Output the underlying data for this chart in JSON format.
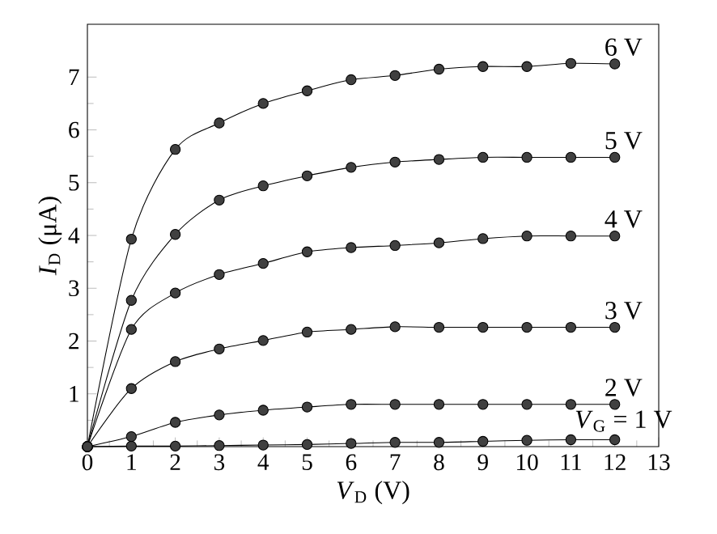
{
  "chart_data": {
    "type": "line",
    "xlabel": "*V*$_{D}$ (V)",
    "ylabel": "*I*$_{D}$ (μA)",
    "x": [
      0,
      1,
      2,
      3,
      4,
      5,
      6,
      7,
      8,
      9,
      10,
      11,
      12
    ],
    "xlim": [
      0,
      13
    ],
    "xticks": [
      0,
      1,
      2,
      3,
      4,
      5,
      6,
      7,
      8,
      9,
      10,
      11,
      12,
      13
    ],
    "ylim": [
      0,
      8
    ],
    "yticks": [
      {
        "value": 0,
        "label": null
      },
      1,
      2,
      3,
      4,
      5,
      6,
      7
    ],
    "marker": "circle",
    "line_style": "solid",
    "grid": false,
    "legend": false,
    "series": [
      {
        "name": "*V*$_{G}$ = 1 V",
        "color": "#000000",
        "values": [
          0,
          0.01,
          0.01,
          0.02,
          0.03,
          0.04,
          0.06,
          0.08,
          0.08,
          0.1,
          0.12,
          0.13,
          0.13
        ]
      },
      {
        "name": "2 V",
        "color": "#000000",
        "values": [
          0,
          0.19,
          0.46,
          0.6,
          0.69,
          0.75,
          0.8,
          0.8,
          0.8,
          0.8,
          0.8,
          0.8,
          0.8
        ]
      },
      {
        "name": "3 V",
        "color": "#000000",
        "values": [
          0,
          1.1,
          1.61,
          1.85,
          2.01,
          2.17,
          2.22,
          2.27,
          2.26,
          2.26,
          2.26,
          2.26,
          2.26
        ]
      },
      {
        "name": "4 V",
        "color": "#000000",
        "values": [
          0,
          2.22,
          2.91,
          3.26,
          3.47,
          3.69,
          3.77,
          3.81,
          3.86,
          3.94,
          3.99,
          3.99,
          3.99
        ]
      },
      {
        "name": "5 V",
        "color": "#000000",
        "values": [
          0,
          2.77,
          4.02,
          4.67,
          4.94,
          5.13,
          5.29,
          5.39,
          5.44,
          5.48,
          5.48,
          5.48,
          5.48
        ]
      },
      {
        "name": "6 V",
        "color": "#000000",
        "values": [
          0,
          3.93,
          5.63,
          6.13,
          6.5,
          6.74,
          6.95,
          7.03,
          7.15,
          7.2,
          7.2,
          7.26,
          7.25
        ]
      }
    ]
  }
}
